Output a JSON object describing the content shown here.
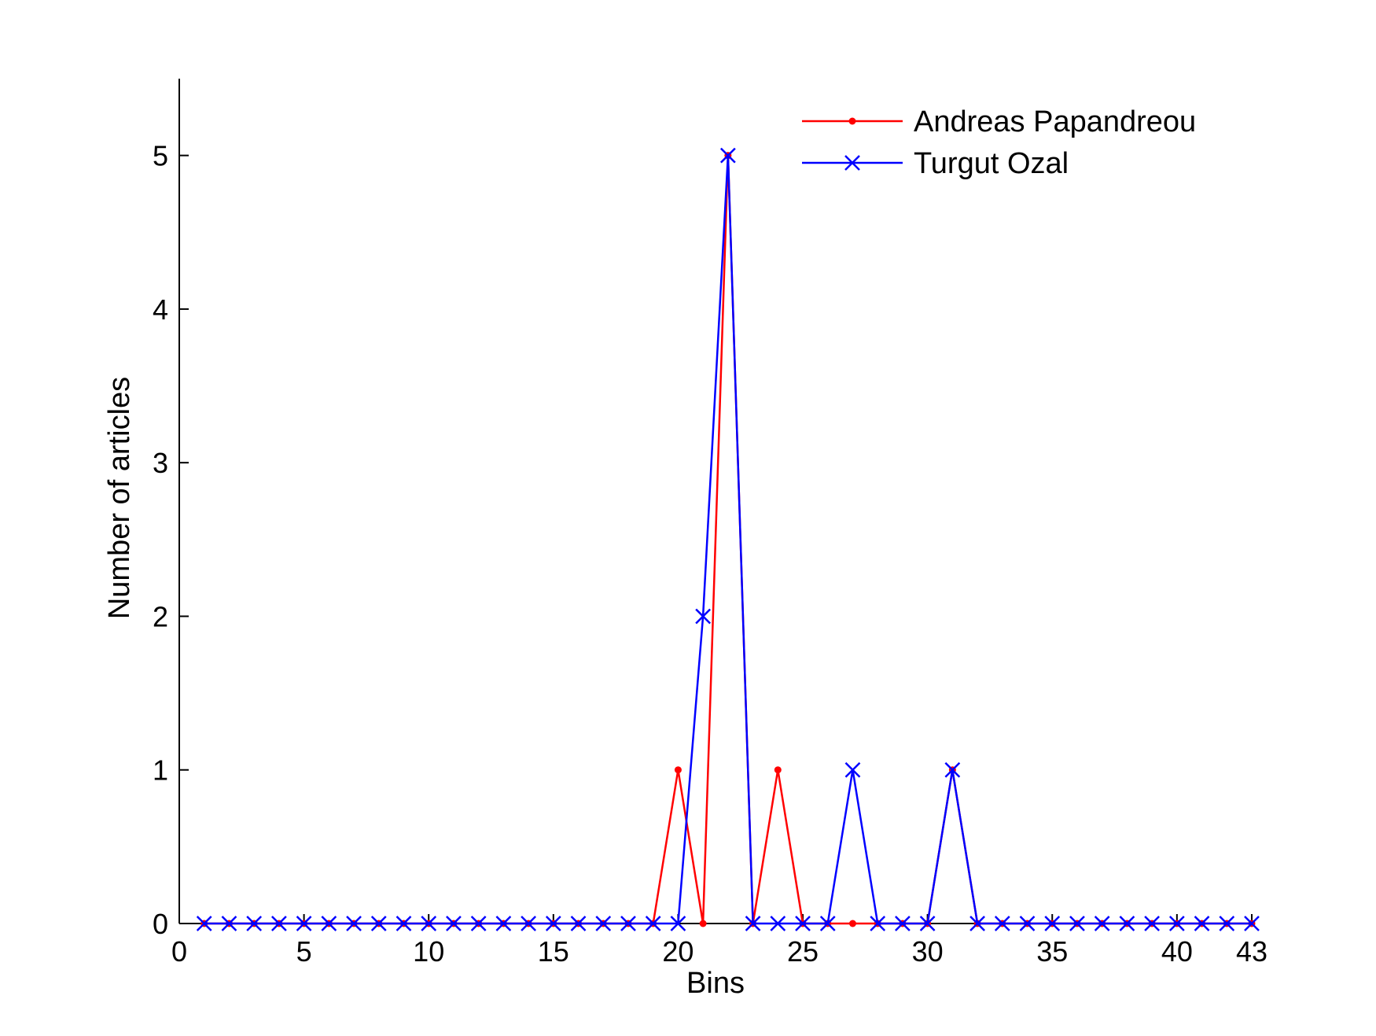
{
  "chart_data": {
    "type": "line",
    "title": "",
    "xlabel": "Bins",
    "ylabel": "Number of articles",
    "xlim": [
      0,
      43
    ],
    "ylim": [
      0,
      5.5
    ],
    "xticks": [
      0,
      5,
      10,
      15,
      20,
      25,
      30,
      35,
      40,
      43
    ],
    "yticks": [
      0,
      1,
      2,
      3,
      4,
      5
    ],
    "grid": false,
    "legend_position": "top-right",
    "x": [
      1,
      2,
      3,
      4,
      5,
      6,
      7,
      8,
      9,
      10,
      11,
      12,
      13,
      14,
      15,
      16,
      17,
      18,
      19,
      20,
      21,
      22,
      23,
      24,
      25,
      26,
      27,
      28,
      29,
      30,
      31,
      32,
      33,
      34,
      35,
      36,
      37,
      38,
      39,
      40,
      41,
      42,
      43
    ],
    "series": [
      {
        "name": "Andreas Papandreou",
        "color": "#ff0000",
        "marker": "dot",
        "values": [
          0,
          0,
          0,
          0,
          0,
          0,
          0,
          0,
          0,
          0,
          0,
          0,
          0,
          0,
          0,
          0,
          0,
          0,
          0,
          1,
          0,
          5,
          0,
          1,
          0,
          0,
          0,
          0,
          0,
          0,
          1,
          0,
          0,
          0,
          0,
          0,
          0,
          0,
          0,
          0,
          0,
          0,
          0
        ]
      },
      {
        "name": "Turgut Ozal",
        "color": "#0000ff",
        "marker": "x",
        "values": [
          0,
          0,
          0,
          0,
          0,
          0,
          0,
          0,
          0,
          0,
          0,
          0,
          0,
          0,
          0,
          0,
          0,
          0,
          0,
          0,
          2,
          5,
          0,
          0,
          0,
          0,
          1,
          0,
          0,
          0,
          1,
          0,
          0,
          0,
          0,
          0,
          0,
          0,
          0,
          0,
          0,
          0,
          0
        ]
      }
    ]
  }
}
